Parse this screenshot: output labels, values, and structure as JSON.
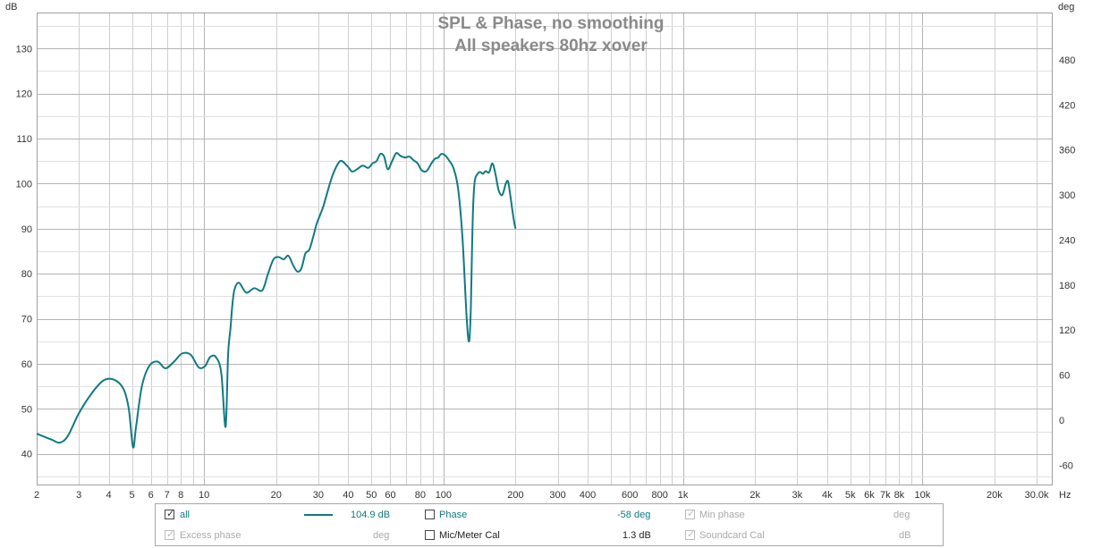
{
  "chart_data": {
    "type": "line",
    "title": "SPL & Phase, no smoothing",
    "subtitle": "All speakers 80hz xover",
    "ylabel": "dB",
    "y2label": "deg",
    "xunit": "Hz",
    "xscale": "log",
    "xlim": [
      2,
      35000
    ],
    "ylim": [
      33,
      138
    ],
    "y2lim": [
      -87,
      543
    ],
    "grid": true,
    "x_ticks": [
      {
        "v": 2,
        "label": "2"
      },
      {
        "v": 3,
        "label": "3"
      },
      {
        "v": 4,
        "label": "4"
      },
      {
        "v": 5,
        "label": "5"
      },
      {
        "v": 6,
        "label": "6"
      },
      {
        "v": 7,
        "label": "7"
      },
      {
        "v": 8,
        "label": "8"
      },
      {
        "v": 10,
        "label": "10"
      },
      {
        "v": 20,
        "label": "20"
      },
      {
        "v": 30,
        "label": "30"
      },
      {
        "v": 40,
        "label": "40"
      },
      {
        "v": 50,
        "label": "50"
      },
      {
        "v": 60,
        "label": "60"
      },
      {
        "v": 80,
        "label": "80"
      },
      {
        "v": 100,
        "label": "100"
      },
      {
        "v": 200,
        "label": "200"
      },
      {
        "v": 300,
        "label": "300"
      },
      {
        "v": 400,
        "label": "400"
      },
      {
        "v": 600,
        "label": "600"
      },
      {
        "v": 800,
        "label": "800"
      },
      {
        "v": 1000,
        "label": "1k"
      },
      {
        "v": 2000,
        "label": "2k"
      },
      {
        "v": 3000,
        "label": "3k"
      },
      {
        "v": 4000,
        "label": "4k"
      },
      {
        "v": 5000,
        "label": "5k"
      },
      {
        "v": 6000,
        "label": "6k"
      },
      {
        "v": 7000,
        "label": "7k"
      },
      {
        "v": 8000,
        "label": "8k"
      },
      {
        "v": 10000,
        "label": "10k"
      },
      {
        "v": 20000,
        "label": "20k"
      },
      {
        "v": 30000,
        "label": "30.0k"
      }
    ],
    "y_ticks": [
      40,
      50,
      60,
      70,
      80,
      90,
      100,
      110,
      120,
      130
    ],
    "y2_ticks": [
      -60,
      0,
      60,
      120,
      180,
      240,
      300,
      360,
      420,
      480
    ],
    "series": [
      {
        "name": "all",
        "color": "#117a82",
        "x": [
          2,
          2.3,
          2.5,
          2.7,
          3,
          3.4,
          3.8,
          4.2,
          4.6,
          4.85,
          5.05,
          5.2,
          5.5,
          5.9,
          6.4,
          6.9,
          7.5,
          8.1,
          8.8,
          9.5,
          10.1,
          10.6,
          11.2,
          11.8,
          12.3,
          12.6,
          12.9,
          13.1,
          13.4,
          14,
          15,
          16.2,
          17.5,
          18.5,
          19.5,
          20.5,
          21.5,
          22.5,
          23.5,
          24.5,
          25.5,
          26.5,
          27.5,
          28.5,
          29.5,
          30.5,
          31.5,
          32.5,
          34.5,
          37,
          39.5,
          41.5,
          43.5,
          46,
          48.5,
          50.5,
          52.5,
          54.5,
          56.5,
          58.5,
          61,
          63.5,
          66,
          69,
          72,
          75,
          78,
          81,
          85,
          89,
          92,
          95,
          98,
          102,
          106,
          110,
          115,
          120,
          125,
          128,
          130,
          131.5,
          133,
          135,
          138,
          142,
          146,
          150,
          155,
          160,
          165,
          170,
          176,
          182,
          186,
          190,
          194,
          198,
          200
        ],
        "y": [
          44.5,
          43.2,
          42.5,
          44,
          49,
          53.5,
          56.3,
          56.5,
          54.5,
          50,
          41.5,
          46,
          55,
          59.5,
          60.5,
          59,
          60.5,
          62.3,
          62,
          59.2,
          59.5,
          61.5,
          61.5,
          58,
          46,
          62,
          68,
          72.5,
          76.5,
          78,
          75.8,
          76.8,
          76.3,
          80,
          83.2,
          83.7,
          83.2,
          84,
          82,
          80.5,
          81.2,
          84.5,
          85.3,
          88,
          91,
          93,
          95,
          97.5,
          102,
          105,
          104,
          102.7,
          103.2,
          104,
          103.5,
          104.5,
          105,
          106.6,
          106,
          103.2,
          105,
          106.8,
          106.2,
          105.8,
          106,
          105.2,
          104.5,
          103,
          102.8,
          104.5,
          105.5,
          105.8,
          106.6,
          106.2,
          105,
          103.5,
          99,
          88,
          70,
          65,
          72,
          85,
          95,
          100.5,
          102,
          102.6,
          102.2,
          102.8,
          102.5,
          104.5,
          102,
          98.5,
          97.5,
          100,
          100.5,
          97.5,
          94,
          91,
          90
        ]
      }
    ]
  },
  "legend": {
    "row1": [
      {
        "label": "all",
        "value": "104.9 dB",
        "checked": true,
        "enabled": true
      },
      {
        "label": "Phase",
        "value": "-58 deg",
        "checked": false,
        "enabled": true
      },
      {
        "label": "Min phase",
        "value": "deg",
        "checked": true,
        "enabled": false
      }
    ],
    "row2": [
      {
        "label": "Excess phase",
        "value": "deg",
        "checked": true,
        "enabled": false
      },
      {
        "label": "Mic/Meter Cal",
        "value": "1.3 dB",
        "checked": false,
        "enabled": true
      },
      {
        "label": "Soundcard Cal",
        "value": "dB",
        "checked": true,
        "enabled": false
      }
    ]
  }
}
